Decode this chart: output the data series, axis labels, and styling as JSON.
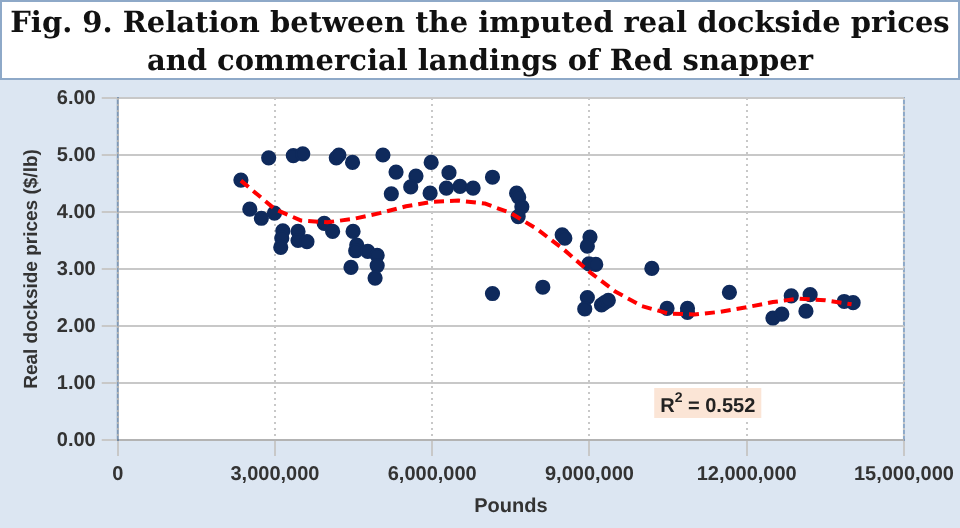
{
  "chart_data": {
    "type": "scatter",
    "title": "Fig. 9. Relation between the imputed real dockside prices and commercial landings of Red snapper",
    "xlabel": "Pounds",
    "ylabel": "Real dockside prices ($/lb)",
    "xlim": [
      0,
      15000000
    ],
    "xticks": [
      {
        "value": 0,
        "label": "0"
      },
      {
        "value": 3000000,
        "label": "3,000,000"
      },
      {
        "value": 6000000,
        "label": "6,000,000"
      },
      {
        "value": 9000000,
        "label": "9,000,000"
      },
      {
        "value": 12000000,
        "label": "12,000,000"
      },
      {
        "value": 15000000,
        "label": "15,000,000"
      }
    ],
    "ylim": [
      0,
      6
    ],
    "yticks": [
      {
        "value": 0,
        "label": "0.00"
      },
      {
        "value": 1,
        "label": "1.00"
      },
      {
        "value": 2,
        "label": "2.00"
      },
      {
        "value": 3,
        "label": "3.00"
      },
      {
        "value": 4,
        "label": "4.00"
      },
      {
        "value": 5,
        "label": "5.00"
      },
      {
        "value": 6,
        "label": "6.00"
      }
    ],
    "grid": true,
    "legend": false,
    "marker": "circle",
    "annotations": [
      "R$^{2}$ = 0.552"
    ],
    "series": [
      {
        "color": "#0f2a5c",
        "x": [
          2350000,
          2880000,
          3350000,
          3530000,
          4170000,
          4220000,
          4480000,
          5060000,
          5310000,
          5690000,
          5980000,
          5590000,
          5220000,
          5960000,
          6320000,
          6270000,
          6530000,
          6780000,
          7150000,
          7610000,
          7150000,
          2520000,
          2740000,
          2990000,
          3150000,
          3130000,
          3110000,
          3440000,
          3440000,
          3610000,
          3940000,
          4100000,
          4490000,
          4560000,
          4540000,
          4770000,
          4950000,
          4950000,
          4450000,
          4910000,
          7650000,
          7710000,
          7640000,
          8110000,
          8480000,
          8530000,
          9010000,
          8960000,
          8990000,
          9120000,
          8960000,
          8910000,
          9230000,
          9290000,
          9360000,
          10190000,
          10480000,
          10870000,
          10870000,
          11670000,
          12500000,
          12670000,
          12850000,
          13130000,
          13210000,
          13860000,
          14030000
        ],
        "values": [
          4.56,
          4.95,
          4.99,
          5.02,
          4.95,
          5.0,
          4.87,
          5.0,
          4.7,
          4.63,
          4.87,
          4.44,
          4.32,
          4.33,
          4.69,
          4.42,
          4.45,
          4.42,
          4.61,
          4.33,
          2.57,
          4.05,
          3.89,
          3.98,
          3.67,
          3.54,
          3.38,
          3.66,
          3.5,
          3.48,
          3.8,
          3.66,
          3.66,
          3.42,
          3.32,
          3.31,
          3.24,
          3.06,
          3.03,
          2.84,
          4.26,
          4.09,
          3.92,
          2.68,
          3.6,
          3.54,
          3.56,
          3.4,
          3.09,
          3.08,
          2.5,
          2.3,
          2.37,
          2.41,
          2.45,
          3.01,
          2.31,
          2.31,
          2.24,
          2.59,
          2.14,
          2.21,
          2.53,
          2.26,
          2.55,
          2.43,
          2.41
        ]
      },
      {
        "type": "line",
        "color": "#ff0000",
        "line_style": "dashed",
        "marker": "none",
        "x": [
          2350000,
          3000000,
          3500000,
          4000000,
          4500000,
          5000000,
          5500000,
          6000000,
          6500000,
          7000000,
          7500000,
          8000000,
          8500000,
          9000000,
          9500000,
          10000000,
          10500000,
          11000000,
          11500000,
          12000000,
          12500000,
          13000000,
          13500000,
          14000000
        ],
        "values": [
          4.55,
          4.05,
          3.85,
          3.82,
          3.88,
          3.98,
          4.1,
          4.18,
          4.2,
          4.15,
          3.98,
          3.7,
          3.35,
          2.95,
          2.6,
          2.35,
          2.22,
          2.2,
          2.25,
          2.33,
          2.42,
          2.48,
          2.45,
          2.38
        ]
      }
    ]
  }
}
